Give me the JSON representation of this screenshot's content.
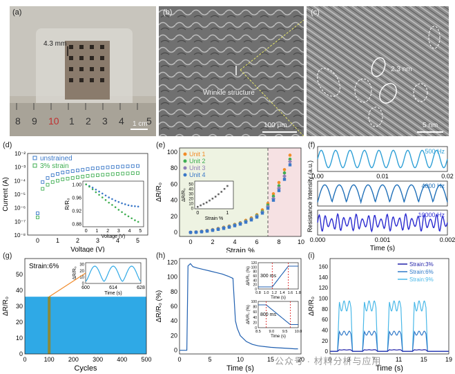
{
  "panels": {
    "a": {
      "label": "(a)",
      "dimension": "4.3 mm",
      "scale": "1 cm",
      "ruler_numbers": [
        "8",
        "9",
        "10",
        "1",
        "2",
        "3",
        "4",
        "5"
      ]
    },
    "b": {
      "label": "(b)",
      "annotation": "Wrinkle structure",
      "scale": "100 μm"
    },
    "c": {
      "label": "(c)",
      "annotation": "2.3 nm",
      "scale": "5 nm"
    },
    "d": {
      "label": "(d)"
    },
    "e": {
      "label": "(e)"
    },
    "f": {
      "label": "(f)"
    },
    "g": {
      "label": "(g)"
    },
    "h": {
      "label": "(h)"
    },
    "i": {
      "label": "(i)"
    }
  },
  "watermark": "公众号 · 材料分析与应用",
  "chart_data": [
    {
      "panel": "d",
      "type": "scatter",
      "yscale": "log",
      "xlabel": "Voltage (V)",
      "ylabel": "Current (A)",
      "xlim": [
        -0.5,
        5.5
      ],
      "ylim_exp": [
        -8,
        -2
      ],
      "xticks": [
        "0",
        "1",
        "2",
        "3",
        "4",
        "5"
      ],
      "yticks": [
        "10⁻⁸",
        "10⁻⁷",
        "10⁻⁶",
        "10⁻⁵",
        "10⁻⁴",
        "10⁻³",
        "10⁻²"
      ],
      "series": [
        {
          "name": "unstrained",
          "color": "#3a78c8",
          "x": [
            0,
            0.25,
            0.5,
            0.75,
            1,
            1.25,
            1.5,
            1.75,
            2,
            2.25,
            2.5,
            2.75,
            3,
            3.25,
            3.5,
            3.75,
            4,
            4.25,
            4.5,
            4.75,
            5
          ],
          "y": [
            -6.4,
            -4.1,
            -3.8,
            -3.6,
            -3.5,
            -3.4,
            -3.35,
            -3.3,
            -3.25,
            -3.2,
            -3.15,
            -3.1,
            -3.08,
            -3.05,
            -3.02,
            -3.0,
            -2.98,
            -2.96,
            -2.95,
            -2.93,
            -2.92
          ]
        },
        {
          "name": "3% strain",
          "color": "#3fae52",
          "x": [
            0,
            0.25,
            0.5,
            0.75,
            1,
            1.25,
            1.5,
            1.75,
            2,
            2.25,
            2.5,
            2.75,
            3,
            3.25,
            3.5,
            3.75,
            4,
            4.25,
            4.5,
            4.75,
            5
          ],
          "y": [
            -6.7,
            -4.6,
            -4.3,
            -4.1,
            -4.0,
            -3.9,
            -3.85,
            -3.8,
            -3.75,
            -3.7,
            -3.65,
            -3.62,
            -3.6,
            -3.57,
            -3.55,
            -3.52,
            -3.5,
            -3.48,
            -3.47,
            -3.45,
            -3.44
          ]
        }
      ],
      "inset": {
        "ylabel": "R/R₀",
        "xlabel": "Voltage (V)",
        "xticks": [
          "0",
          "1",
          "2",
          "3",
          "4",
          "5"
        ],
        "yticks": [
          "0.88",
          "0.92",
          "0.96",
          "1.00"
        ],
        "xlim": [
          -0.3,
          5.3
        ],
        "ylim": [
          0.87,
          1.01
        ],
        "series": [
          {
            "color": "#3a78c8",
            "x": [
              0,
              0.3,
              0.6,
              0.9,
              1.2,
              1.5,
              1.8,
              2.1,
              2.4,
              2.7,
              3,
              3.3,
              3.6,
              3.9,
              4.2,
              4.5,
              4.8
            ],
            "y": [
              1.0,
              0.995,
              0.99,
              0.984,
              0.978,
              0.972,
              0.966,
              0.96,
              0.955,
              0.95,
              0.946,
              0.942,
              0.939,
              0.936,
              0.934,
              0.933,
              0.932
            ]
          },
          {
            "color": "#3fae52",
            "x": [
              0,
              0.3,
              0.6,
              0.9,
              1.2,
              1.5,
              1.8,
              2.1,
              2.4,
              2.7,
              3,
              3.3,
              3.6,
              3.9,
              4.2,
              4.5,
              4.8
            ],
            "y": [
              1.0,
              0.993,
              0.985,
              0.976,
              0.968,
              0.96,
              0.952,
              0.944,
              0.937,
              0.93,
              0.922,
              0.915,
              0.908,
              0.902,
              0.896,
              0.89,
              0.885
            ]
          }
        ]
      }
    },
    {
      "panel": "e",
      "type": "scatter",
      "xlabel": "Strain %",
      "ylabel": "ΔR/R₀",
      "xlim": [
        -1,
        10
      ],
      "ylim": [
        -5,
        105
      ],
      "xticks": [
        "0",
        "2",
        "4",
        "6",
        "8",
        "10"
      ],
      "yticks": [
        "0",
        "20",
        "40",
        "60",
        "80",
        "100"
      ],
      "dashed_line_x": 7,
      "series": [
        {
          "name": "Unit 1",
          "color": "#f28c28",
          "marker": "circle",
          "x": [
            0,
            0.5,
            1,
            1.5,
            2,
            2.5,
            3,
            3.5,
            4,
            4.5,
            5,
            5.5,
            6,
            6.5,
            7,
            7.5,
            8,
            8.5,
            9
          ],
          "y": [
            0,
            0.5,
            1.5,
            2.5,
            3.5,
            5,
            6.5,
            8,
            10,
            12,
            15,
            18,
            22,
            28,
            36,
            48,
            62,
            78,
            96
          ]
        },
        {
          "name": "Unit 2",
          "color": "#3fae52",
          "marker": "circle",
          "x": [
            0,
            0.5,
            1,
            1.5,
            2,
            2.5,
            3,
            3.5,
            4,
            4.5,
            5,
            5.5,
            6,
            6.5,
            7,
            7.5,
            8,
            8.5,
            9
          ],
          "y": [
            0,
            0.4,
            1.2,
            2.2,
            3.2,
            4.5,
            6,
            7.5,
            9.5,
            11.5,
            14,
            17,
            21,
            26,
            34,
            45,
            58,
            74,
            91
          ]
        },
        {
          "name": "Unit 3",
          "color": "#8f7fb6",
          "marker": "diamond",
          "x": [
            0,
            0.5,
            1,
            1.5,
            2,
            2.5,
            3,
            3.5,
            4,
            4.5,
            5,
            5.5,
            6,
            6.5,
            7,
            7.5,
            8,
            8.5,
            9
          ],
          "y": [
            0,
            0.3,
            1,
            2,
            3,
            4.2,
            5.6,
            7,
            9,
            11,
            13.5,
            16.5,
            20,
            25,
            32,
            42,
            55,
            70,
            88
          ]
        },
        {
          "name": "Unit 4",
          "color": "#3a78c8",
          "marker": "square",
          "x": [
            0,
            0.5,
            1,
            1.5,
            2,
            2.5,
            3,
            3.5,
            4,
            4.5,
            5,
            5.5,
            6,
            6.5,
            7,
            7.5,
            8,
            8.5,
            9
          ],
          "y": [
            0,
            0.2,
            0.8,
            1.6,
            2.6,
            3.8,
            5,
            6.5,
            8.3,
            10.3,
            12.7,
            15.5,
            19,
            24,
            30,
            40,
            52,
            66,
            84
          ]
        }
      ],
      "inset": {
        "ylabel": "ΔR/R₀",
        "xlabel": "Strain %",
        "xticks": [
          "0",
          "1"
        ],
        "yticks": [
          "0",
          "10",
          "20",
          "30",
          "40",
          "50"
        ],
        "xlim": [
          -0.1,
          1.2
        ],
        "ylim": [
          -2,
          55
        ],
        "series": [
          {
            "color": "#666666",
            "x": [
              0,
              0.1,
              0.2,
              0.3,
              0.4,
              0.5,
              0.6,
              0.7,
              0.8,
              0.9,
              1.0
            ],
            "y": [
              2,
              5,
              8,
              11,
              15,
              19,
              23,
              28,
              33,
              39,
              45
            ]
          }
        ]
      }
    },
    {
      "panel": "f",
      "type": "line",
      "ylabel": "Resistance Intensity (a.u.)",
      "subplots": [
        {
          "label": "500 Hz",
          "color": "#2d9fd6",
          "xticks": [
            "0.00",
            "0.01",
            "0.02"
          ],
          "cycles": 9
        },
        {
          "label": "4000 Hz",
          "color": "#1f6fb8",
          "xticks": [],
          "cycles": 9
        },
        {
          "label": "10000 Hz",
          "color": "#2a2ad0",
          "xticks": [
            "0.000",
            "0.001",
            "0.002"
          ],
          "cycles": 21
        }
      ],
      "xlabel": "Time (s)"
    },
    {
      "panel": "g",
      "type": "area",
      "xlabel": "Cycles",
      "ylabel": "ΔR/R₀",
      "xlim": [
        0,
        500
      ],
      "ylim": [
        0,
        60
      ],
      "xticks": [
        "0",
        "100",
        "200",
        "300",
        "400",
        "500"
      ],
      "yticks": [
        "0",
        "10",
        "20",
        "30",
        "40",
        "50"
      ],
      "annotation": "Strain:6%",
      "band_low": 0,
      "band_high": 36,
      "highlight_x": 100,
      "inset": {
        "xlabel": "Time (s)",
        "ylabel": "ΔR/R₀",
        "xticks": [
          "600",
          "614",
          "628"
        ],
        "yticks": [
          "0",
          "10",
          "20",
          "30"
        ],
        "peaks": 3
      }
    },
    {
      "panel": "h",
      "type": "line",
      "xlabel": "Time (s)",
      "ylabel": "ΔR/R₀ (%)",
      "xlim": [
        0,
        20
      ],
      "ylim": [
        -5,
        125
      ],
      "xticks": [
        "0",
        "5",
        "10",
        "15",
        "20"
      ],
      "yticks": [
        "0",
        "20",
        "40",
        "60",
        "80",
        "100",
        "120"
      ],
      "x": [
        0,
        1.2,
        1.4,
        1.8,
        2.2,
        3,
        4,
        5,
        6,
        7,
        8,
        8.8,
        9.2,
        9.5,
        10,
        11,
        12,
        13,
        14,
        15,
        16,
        17,
        18,
        19,
        19.5
      ],
      "y": [
        0,
        0,
        115,
        118,
        114,
        112,
        110,
        108,
        106,
        104,
        101,
        98,
        40,
        30,
        20,
        12,
        8,
        6,
        5,
        4,
        3.5,
        3,
        2.5,
        2,
        2
      ],
      "inset_top": {
        "xlabel": "Time (s)",
        "ylabel": "ΔR/R₀ (%)",
        "xticks": [
          "0.8",
          "1.0",
          "1.2",
          "1.4",
          "1.6",
          "1.8"
        ],
        "yticks": [
          "0",
          "20",
          "40",
          "60",
          "80",
          "100",
          "120"
        ],
        "annotation": "300 ms"
      },
      "inset_bottom": {
        "xlabel": "Time (s)",
        "ylabel": "ΔR/R₀ (%)",
        "xticks": [
          "8.5",
          "9.0",
          "9.5",
          "10.0"
        ],
        "yticks": [
          "0",
          "20",
          "40",
          "60",
          "80",
          "100"
        ],
        "annotation": "800 ms"
      }
    },
    {
      "panel": "i",
      "type": "line",
      "xlabel": "Time (s)",
      "ylabel": "ΔR/R₀",
      "xlim": [
        0,
        19
      ],
      "ylim": [
        -5,
        175
      ],
      "xticks": [
        "0",
        "3",
        "7",
        "11",
        "15",
        "19"
      ],
      "yticks": [
        "0",
        "20",
        "40",
        "60",
        "80",
        "100",
        "120",
        "140",
        "160"
      ],
      "series": [
        {
          "name": "Strain:3%",
          "color": "#1f1fa8",
          "peak": 3
        },
        {
          "name": "Strain:6%",
          "color": "#2d78c8",
          "peak": 38
        },
        {
          "name": "Strain:9%",
          "color": "#49b8e8",
          "peak": 95
        }
      ]
    }
  ]
}
